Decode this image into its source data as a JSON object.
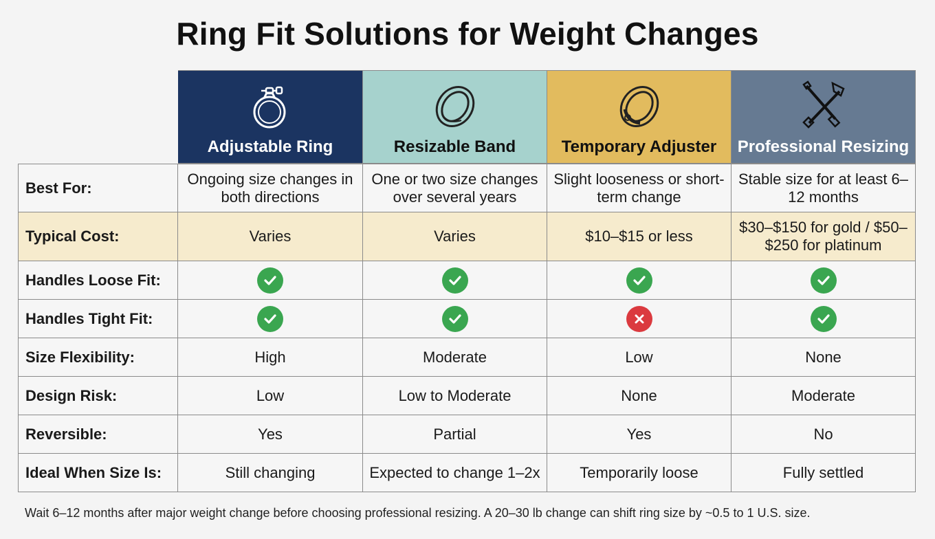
{
  "title": "Ring Fit Solutions for Weight Changes",
  "columns": [
    {
      "label": "Adjustable Ring",
      "icon": "adjustable-ring-icon",
      "color": "#1b3461"
    },
    {
      "label": "Resizable Band",
      "icon": "ring-band-icon",
      "color": "#a6d2cd"
    },
    {
      "label": "Temporary Adjuster",
      "icon": "ring-adjuster-icon",
      "color": "#e2bb5e"
    },
    {
      "label": "Professional Resizing",
      "icon": "tools-icon",
      "color": "#667a92"
    }
  ],
  "rows": [
    {
      "label": "Best For:",
      "cells": [
        "Ongoing size changes in both directions",
        "One or two size changes over several years",
        "Slight looseness or short-term change",
        "Stable size for at least 6–12 months"
      ]
    },
    {
      "label": "Typical Cost:",
      "cells": [
        "Varies",
        "Varies",
        "$10–$15 or less",
        "$30–$150 for gold / $50–$250 for platinum"
      ]
    },
    {
      "label": "Handles Loose Fit:",
      "checks": [
        "yes",
        "yes",
        "yes",
        "yes"
      ]
    },
    {
      "label": "Handles Tight Fit:",
      "checks": [
        "yes",
        "yes",
        "no",
        "yes"
      ]
    },
    {
      "label": "Size Flexibility:",
      "cells": [
        "High",
        "Moderate",
        "Low",
        "None"
      ]
    },
    {
      "label": "Design Risk:",
      "cells": [
        "Low",
        "Low to Moderate",
        "None",
        "Moderate"
      ]
    },
    {
      "label": "Reversible:",
      "cells": [
        "Yes",
        "Partial",
        "Yes",
        "No"
      ]
    },
    {
      "label": "Ideal When Size Is:",
      "cells": [
        "Still changing",
        "Expected to change 1–2x",
        "Temporarily loose",
        "Fully settled"
      ]
    }
  ],
  "icons": {
    "yes": "check-icon",
    "no": "x-icon",
    "yes_color": "#3aa650",
    "no_color": "#db3a3f"
  },
  "footnote": "Wait 6–12 months after major weight change before choosing professional resizing. A 20–30 lb change can shift ring size by ~0.5 to 1 U.S. size."
}
